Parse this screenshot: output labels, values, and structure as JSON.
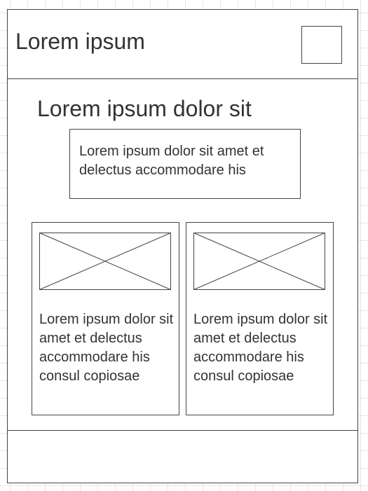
{
  "header": {
    "title": "Lorem ipsum"
  },
  "main": {
    "heading": "Lorem ipsum dolor sit",
    "intro_text": "Lorem ipsum dolor sit amet et delectus accommodare his",
    "cards": [
      {
        "image_icon": "image-placeholder-icon",
        "text": "Lorem ipsum dolor sit amet et delectus accommodare his consul copiosae"
      },
      {
        "image_icon": "image-placeholder-icon",
        "text": "Lorem ipsum dolor sit amet et delectus accommodare his consul copiosae"
      }
    ]
  },
  "colors": {
    "stroke": "#444444",
    "text": "#333333",
    "grid": "#e6e6e6",
    "background": "#ffffff"
  }
}
